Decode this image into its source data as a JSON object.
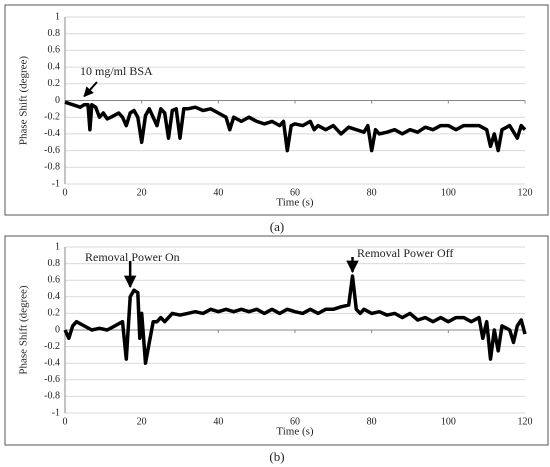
{
  "chart_data": [
    {
      "type": "line",
      "caption": "(a)",
      "ylabel": "Phase Shift (degree)",
      "xlabel": "Time (s)",
      "annotations": [
        "10 mg/ml BSA"
      ],
      "color": "#000000",
      "grid": true,
      "xlim": [
        0,
        120
      ],
      "xticks": [
        0,
        20,
        40,
        60,
        80,
        100,
        120
      ],
      "ylim": [
        -1,
        1
      ],
      "yticks": [
        -1,
        -0.8,
        -0.6,
        -0.4,
        -0.2,
        0,
        0.2,
        0.4,
        0.6,
        0.8,
        1
      ],
      "x": [
        0,
        2,
        4,
        5,
        6,
        6.5,
        7,
        8,
        9,
        10,
        11,
        12,
        14,
        15,
        16,
        17,
        18,
        19,
        20,
        21,
        22,
        24,
        25,
        26,
        27,
        28,
        29,
        30,
        31,
        32,
        34,
        36,
        38,
        40,
        42,
        43,
        44,
        46,
        48,
        50,
        52,
        54,
        56,
        57,
        58,
        59,
        60,
        62,
        64,
        65,
        66,
        68,
        70,
        72,
        74,
        76,
        78,
        79,
        80,
        81,
        82,
        84,
        86,
        88,
        90,
        92,
        94,
        96,
        98,
        100,
        102,
        104,
        106,
        108,
        110,
        111,
        112,
        113,
        114,
        116,
        118,
        119,
        120
      ],
      "values": [
        -0.02,
        -0.05,
        -0.08,
        -0.05,
        -0.05,
        -0.35,
        -0.05,
        -0.08,
        -0.2,
        -0.15,
        -0.22,
        -0.2,
        -0.15,
        -0.2,
        -0.3,
        -0.15,
        -0.12,
        -0.2,
        -0.5,
        -0.18,
        -0.1,
        -0.3,
        -0.1,
        -0.15,
        -0.45,
        -0.12,
        -0.1,
        -0.45,
        -0.1,
        -0.1,
        -0.08,
        -0.12,
        -0.1,
        -0.15,
        -0.2,
        -0.35,
        -0.2,
        -0.25,
        -0.2,
        -0.25,
        -0.28,
        -0.25,
        -0.3,
        -0.25,
        -0.6,
        -0.3,
        -0.28,
        -0.3,
        -0.25,
        -0.35,
        -0.3,
        -0.35,
        -0.3,
        -0.4,
        -0.32,
        -0.35,
        -0.38,
        -0.3,
        -0.6,
        -0.35,
        -0.4,
        -0.38,
        -0.35,
        -0.4,
        -0.35,
        -0.38,
        -0.32,
        -0.35,
        -0.3,
        -0.3,
        -0.35,
        -0.3,
        -0.3,
        -0.3,
        -0.35,
        -0.55,
        -0.4,
        -0.6,
        -0.35,
        -0.3,
        -0.45,
        -0.3,
        -0.35
      ]
    },
    {
      "type": "line",
      "caption": "(b)",
      "ylabel": "Phase Shift (degree)",
      "xlabel": "Time (s)",
      "annotations": [
        "Removal  Power On",
        "Removal  Power Off"
      ],
      "color": "#000000",
      "grid": true,
      "xlim": [
        0,
        120
      ],
      "xticks": [
        0,
        20,
        40,
        60,
        80,
        100,
        120
      ],
      "ylim": [
        -1,
        1
      ],
      "yticks": [
        -1,
        -0.8,
        -0.6,
        -0.4,
        -0.2,
        0,
        0.2,
        0.4,
        0.6,
        0.8,
        1
      ],
      "x": [
        0,
        1,
        2,
        3,
        5,
        7,
        9,
        11,
        13,
        15,
        16,
        17,
        18,
        19,
        19.5,
        20,
        21,
        22,
        23,
        24,
        25,
        26,
        28,
        30,
        32,
        34,
        36,
        38,
        40,
        42,
        44,
        46,
        48,
        50,
        52,
        54,
        56,
        58,
        60,
        62,
        64,
        66,
        68,
        70,
        72,
        74,
        75,
        76,
        77,
        78,
        80,
        82,
        84,
        86,
        88,
        90,
        92,
        94,
        96,
        98,
        100,
        102,
        104,
        106,
        108,
        109,
        110,
        111,
        112,
        113,
        114,
        116,
        117,
        118,
        119,
        120
      ],
      "values": [
        0,
        -0.1,
        0.05,
        0.1,
        0.05,
        0,
        0.02,
        0,
        0.05,
        0.1,
        -0.35,
        0.4,
        0.48,
        0.45,
        -0.1,
        0.2,
        -0.4,
        -0.15,
        0.1,
        0.1,
        0.15,
        0.1,
        0.2,
        0.18,
        0.2,
        0.22,
        0.2,
        0.25,
        0.22,
        0.25,
        0.22,
        0.25,
        0.22,
        0.25,
        0.2,
        0.25,
        0.2,
        0.25,
        0.22,
        0.2,
        0.25,
        0.2,
        0.25,
        0.25,
        0.28,
        0.3,
        0.65,
        0.25,
        0.2,
        0.25,
        0.2,
        0.22,
        0.18,
        0.2,
        0.15,
        0.2,
        0.12,
        0.15,
        0.1,
        0.15,
        0.1,
        0.15,
        0.15,
        0.1,
        0.15,
        -0.1,
        0.1,
        -0.35,
        0,
        -0.25,
        0.05,
        0,
        -0.15,
        0.05,
        0.12,
        -0.05
      ]
    }
  ]
}
